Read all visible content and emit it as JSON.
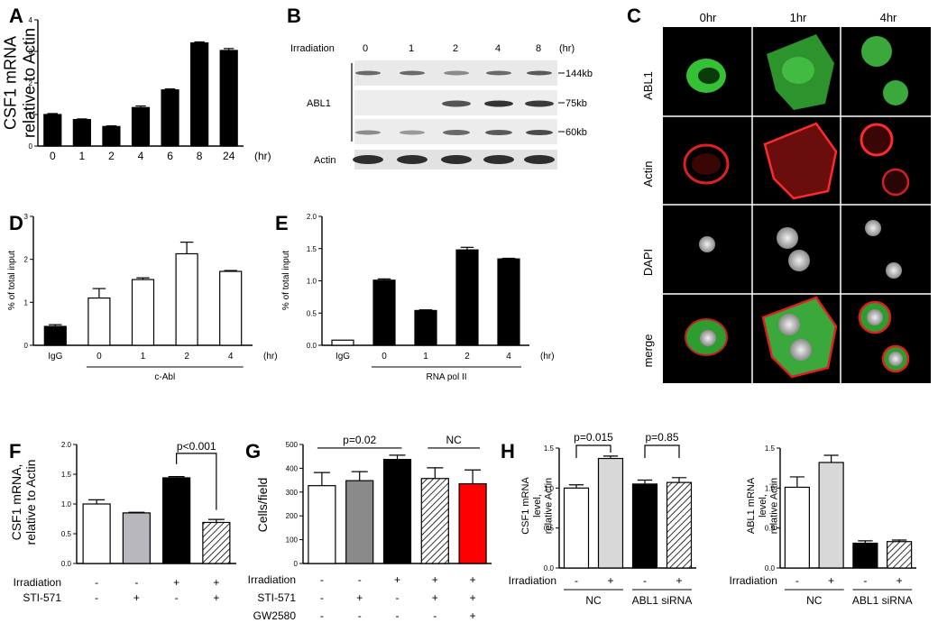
{
  "panels": {
    "A": "A",
    "B": "B",
    "C": "C",
    "D": "D",
    "E": "E",
    "F": "F",
    "G": "G",
    "H": "H"
  },
  "panel_B": {
    "irradiation_label": "Irradiation",
    "timepoints": [
      "0",
      "1",
      "2",
      "4",
      "8"
    ],
    "unit": "(hr)",
    "protein": "ABL1",
    "loading": "Actin",
    "sizes": [
      "144kb",
      "75kb",
      "60kb"
    ]
  },
  "panel_C": {
    "times": [
      "0hr",
      "1hr",
      "4hr"
    ],
    "rows": [
      "ABL1",
      "Actin",
      "DAPI",
      "merge"
    ]
  },
  "colors": {
    "black": "#000000",
    "white": "#ffffff",
    "light_gray": "#b8b8bc",
    "gray": "#8a8a8a",
    "pale": "#d8d8d8",
    "red": "#ff0000",
    "green": "#3ec83e"
  },
  "chart_data": [
    {
      "id": "A",
      "type": "bar",
      "ylabel": "CSF1 mRNA relative to Actin",
      "ylim": [
        0,
        4
      ],
      "yticks": [
        0,
        1,
        2,
        3,
        4
      ],
      "categories": [
        "0",
        "1",
        "2",
        "4",
        "6",
        "8",
        "24"
      ],
      "values": [
        1.0,
        0.84,
        0.62,
        1.22,
        1.78,
        3.27,
        3.03
      ],
      "errors": [
        0.03,
        0.02,
        0.02,
        0.05,
        0.03,
        0.03,
        0.06
      ],
      "xunit": "(hr)",
      "fills": [
        "#000000",
        "#000000",
        "#000000",
        "#000000",
        "#000000",
        "#000000",
        "#000000"
      ]
    },
    {
      "id": "D",
      "type": "bar",
      "ylabel": "% of total input",
      "ylim": [
        0,
        3
      ],
      "yticks": [
        0,
        1,
        2,
        3
      ],
      "categories": [
        "IgG",
        "0",
        "1",
        "2",
        "4"
      ],
      "values": [
        0.44,
        1.1,
        1.53,
        2.13,
        1.72
      ],
      "errors": [
        0.04,
        0.22,
        0.04,
        0.27,
        0.02
      ],
      "xunit": "(hr)",
      "group_label": "c-Abl",
      "fills": [
        "#000000",
        "#ffffff",
        "#ffffff",
        "#ffffff",
        "#ffffff"
      ]
    },
    {
      "id": "E",
      "type": "bar",
      "ylabel": "% of total input",
      "ylim": [
        0,
        2.0
      ],
      "yticks": [
        "0.0",
        "0.5",
        "1.0",
        "1.5",
        "2.0"
      ],
      "categories": [
        "IgG",
        "0",
        "1",
        "2",
        "4"
      ],
      "values": [
        0.08,
        1.01,
        0.54,
        1.48,
        1.34
      ],
      "errors": [
        0.0,
        0.02,
        0.01,
        0.04,
        0.01
      ],
      "xunit": "(hr)",
      "group_label": "RNA pol II",
      "fills": [
        "#ffffff",
        "#000000",
        "#000000",
        "#000000",
        "#000000"
      ]
    },
    {
      "id": "F",
      "type": "bar",
      "ylabel": "CSF1 mRNA, relative to Actin",
      "ylim": [
        0,
        2.0
      ],
      "yticks": [
        "0.0",
        "0.5",
        "1.0",
        "1.5",
        "2.0"
      ],
      "categories": [
        "1",
        "2",
        "3",
        "4"
      ],
      "values": [
        1.0,
        0.85,
        1.44,
        0.69
      ],
      "errors": [
        0.07,
        0.01,
        0.02,
        0.05
      ],
      "fills": [
        "#ffffff",
        "#b8b8bc",
        "#000000",
        "hatch"
      ],
      "row_labels": [
        "Irradiation",
        "STI-571"
      ],
      "rows": [
        [
          "-",
          "-",
          "+",
          "+"
        ],
        [
          "-",
          "+",
          "-",
          "+"
        ]
      ],
      "annotation": "p<0.001"
    },
    {
      "id": "G",
      "type": "bar",
      "ylabel": "Cells/field",
      "ylim": [
        0,
        500
      ],
      "yticks": [
        0,
        100,
        200,
        300,
        400,
        500
      ],
      "categories": [
        "1",
        "2",
        "3",
        "4",
        "5"
      ],
      "values": [
        327,
        348,
        437,
        357,
        335
      ],
      "errors": [
        55,
        38,
        18,
        45,
        58
      ],
      "fills": [
        "#ffffff",
        "#8a8a8a",
        "#000000",
        "hatch",
        "#ff0000"
      ],
      "row_labels": [
        "Irradiation",
        "STI-571",
        "GW2580"
      ],
      "rows": [
        [
          "-",
          "-",
          "+",
          "+",
          "+"
        ],
        [
          "-",
          "+",
          "-",
          "+",
          "+"
        ],
        [
          "-",
          "-",
          "-",
          "-",
          "+"
        ]
      ],
      "annotations": [
        "p=0.02",
        "NC"
      ]
    },
    {
      "id": "H1",
      "type": "bar",
      "ylabel": "CSF1 mRNA level, relative Actin",
      "ylim": [
        0,
        1.5
      ],
      "yticks": [
        "0.0",
        "0.5",
        "1.0",
        "1.5"
      ],
      "categories": [
        "1",
        "2",
        "3",
        "4"
      ],
      "values": [
        1.0,
        1.37,
        1.05,
        1.07
      ],
      "errors": [
        0.04,
        0.03,
        0.05,
        0.06
      ],
      "fills": [
        "#ffffff",
        "#d8d8d8",
        "#000000",
        "hatch"
      ],
      "row_label": "Irradiation",
      "row": [
        "-",
        "+",
        "-",
        "+"
      ],
      "groups": [
        "NC",
        "ABL1 siRNA"
      ],
      "annotations": [
        "p=0.015",
        "p=0.85"
      ]
    },
    {
      "id": "H2",
      "type": "bar",
      "ylabel": "ABL1 mRNA level, relative Actin",
      "ylim": [
        0,
        1.5
      ],
      "yticks": [
        "0.0",
        "0.5",
        "1.0",
        "1.5"
      ],
      "categories": [
        "1",
        "2",
        "3",
        "4"
      ],
      "values": [
        1.01,
        1.32,
        0.31,
        0.33
      ],
      "errors": [
        0.13,
        0.09,
        0.03,
        0.02
      ],
      "fills": [
        "#ffffff",
        "#d8d8d8",
        "#000000",
        "hatch"
      ],
      "row_label": "Irradiation",
      "row": [
        "-",
        "+",
        "-",
        "+"
      ],
      "groups": [
        "NC",
        "ABL1 siRNA"
      ]
    }
  ]
}
